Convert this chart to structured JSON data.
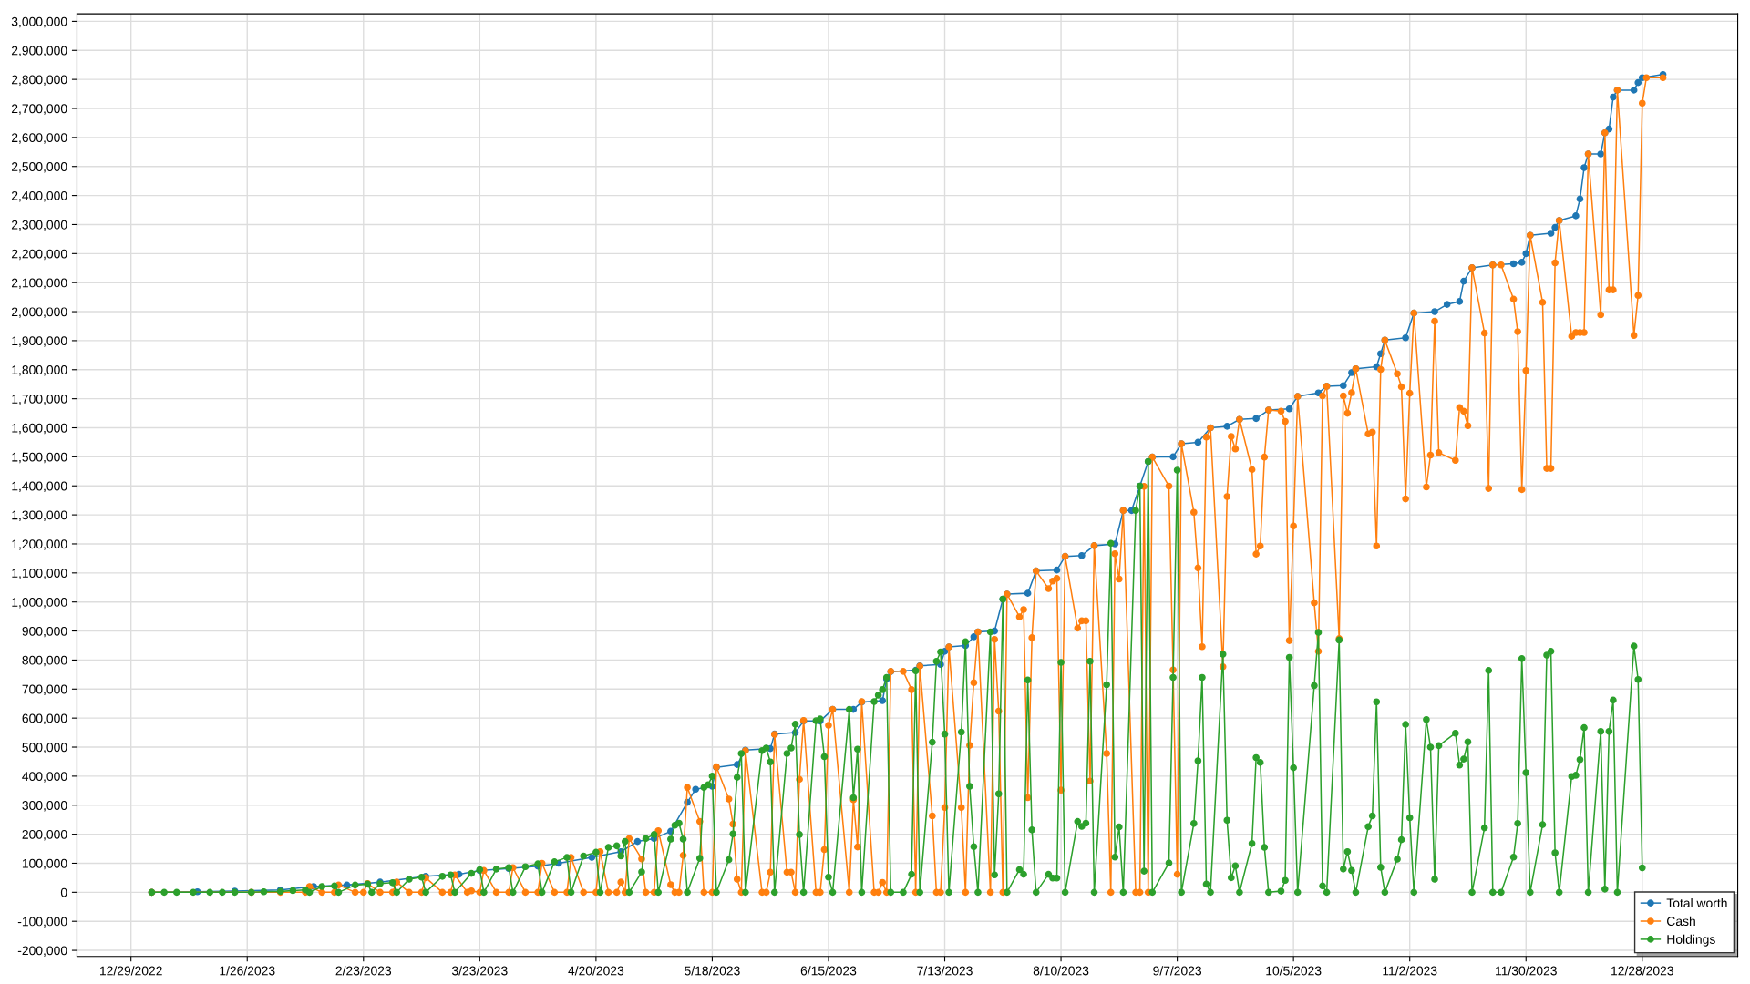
{
  "chart_data": {
    "type": "line",
    "marker": "circle",
    "line_style": "solid",
    "grid": true,
    "legend": "bottom right",
    "xlim": [
      "2022-12-16",
      "2024-01-20"
    ],
    "xticks": [
      {
        "value": "2022-12-29",
        "label": "12/29/2022"
      },
      {
        "value": "2023-01-26",
        "label": "1/26/2023"
      },
      {
        "value": "2023-02-23",
        "label": "2/23/2023"
      },
      {
        "value": "2023-03-23",
        "label": "3/23/2023"
      },
      {
        "value": "2023-04-20",
        "label": "4/20/2023"
      },
      {
        "value": "2023-05-18",
        "label": "5/18/2023"
      },
      {
        "value": "2023-06-15",
        "label": "6/15/2023"
      },
      {
        "value": "2023-07-13",
        "label": "7/13/2023"
      },
      {
        "value": "2023-08-10",
        "label": "8/10/2023"
      },
      {
        "value": "2023-09-07",
        "label": "9/7/2023"
      },
      {
        "value": "2023-10-05",
        "label": "10/5/2023"
      },
      {
        "value": "2023-11-02",
        "label": "11/2/2023"
      },
      {
        "value": "2023-11-30",
        "label": "11/30/2023"
      },
      {
        "value": "2023-12-28",
        "label": "12/28/2023"
      }
    ],
    "ylim": [
      -221000,
      3026000
    ],
    "yticks": [
      {
        "value": -200000,
        "label": "-200,000"
      },
      {
        "value": -100000,
        "label": "-100,000"
      },
      0,
      {
        "value": 100000,
        "label": "100,000"
      },
      {
        "value": 200000,
        "label": "200,000"
      },
      {
        "value": 300000,
        "label": "300,000"
      },
      {
        "value": 400000,
        "label": "400,000"
      },
      {
        "value": 500000,
        "label": "500,000"
      },
      {
        "value": 600000,
        "label": "600,000"
      },
      {
        "value": 700000,
        "label": "700,000"
      },
      {
        "value": 800000,
        "label": "800,000"
      },
      {
        "value": 900000,
        "label": "900,000"
      },
      {
        "value": 1000000,
        "label": "1,000,000"
      },
      {
        "value": 1100000,
        "label": "1,100,000"
      },
      {
        "value": 1200000,
        "label": "1,200,000"
      },
      {
        "value": 1300000,
        "label": "1,300,000"
      },
      {
        "value": 1400000,
        "label": "1,400,000"
      },
      {
        "value": 1500000,
        "label": "1,500,000"
      },
      {
        "value": 1600000,
        "label": "1,600,000"
      },
      {
        "value": 1700000,
        "label": "1,700,000"
      },
      {
        "value": 1800000,
        "label": "1,800,000"
      },
      {
        "value": 1900000,
        "label": "1,900,000"
      },
      {
        "value": 2000000,
        "label": "2,000,000"
      },
      {
        "value": 2100000,
        "label": "2,100,000"
      },
      {
        "value": 2200000,
        "label": "2,200,000"
      },
      {
        "value": 2300000,
        "label": "2,300,000"
      },
      {
        "value": 2400000,
        "label": "2,400,000"
      },
      {
        "value": 2500000,
        "label": "2,500,000"
      },
      {
        "value": 2600000,
        "label": "2,600,000"
      },
      {
        "value": 2700000,
        "label": "2,700,000"
      },
      {
        "value": 2800000,
        "label": "2,800,000"
      },
      {
        "value": 2900000,
        "label": "2,900,000"
      },
      {
        "value": 3000000,
        "label": "3,000,000"
      }
    ],
    "series": [
      {
        "name": "Total worth",
        "color": "#1f77b4",
        "x": [
          "2023-01-03",
          "2023-01-14",
          "2023-01-23",
          "2023-02-03",
          "2023-02-11",
          "2023-02-19",
          "2023-02-27",
          "2023-03-10",
          "2023-03-18",
          "2023-03-23",
          "2023-03-30",
          "2023-04-06",
          "2023-04-11",
          "2023-04-19",
          "2023-04-26",
          "2023-04-30",
          "2023-05-04",
          "2023-05-08",
          "2023-05-12",
          "2023-05-14",
          "2023-05-18",
          "2023-05-19",
          "2023-05-24",
          "2023-05-26",
          "2023-06-01",
          "2023-06-02",
          "2023-06-07",
          "2023-06-09",
          "2023-06-13",
          "2023-06-16",
          "2023-06-21",
          "2023-06-23",
          "2023-06-28",
          "2023-06-29",
          "2023-06-30",
          "2023-07-06",
          "2023-07-07",
          "2023-07-12",
          "2023-07-13",
          "2023-07-14",
          "2023-07-18",
          "2023-07-20",
          "2023-07-21",
          "2023-07-25",
          "2023-07-27",
          "2023-07-28",
          "2023-08-02",
          "2023-08-04",
          "2023-08-09",
          "2023-08-11",
          "2023-08-15",
          "2023-08-18",
          "2023-08-23",
          "2023-08-25",
          "2023-08-27",
          "2023-08-29",
          "2023-08-31",
          "2023-09-01",
          "2023-09-06",
          "2023-09-08",
          "2023-09-12",
          "2023-09-15",
          "2023-09-19",
          "2023-09-22",
          "2023-09-26",
          "2023-09-29",
          "2023-10-04",
          "2023-10-06",
          "2023-10-11",
          "2023-10-13",
          "2023-10-17",
          "2023-10-19",
          "2023-10-20",
          "2023-10-25",
          "2023-10-26",
          "2023-10-27",
          "2023-11-01",
          "2023-11-03",
          "2023-11-08",
          "2023-11-11",
          "2023-11-14",
          "2023-11-15",
          "2023-11-17",
          "2023-11-22",
          "2023-11-27",
          "2023-11-29",
          "2023-11-30",
          "2023-12-01",
          "2023-12-06",
          "2023-12-07",
          "2023-12-08",
          "2023-12-12",
          "2023-12-13",
          "2023-12-14",
          "2023-12-15",
          "2023-12-18",
          "2023-12-19",
          "2023-12-20",
          "2023-12-21",
          "2023-12-22",
          "2023-12-26",
          "2023-12-27",
          "2023-12-28",
          "2024-01-02"
        ],
        "values": [
          0,
          2000,
          4000,
          8000,
          20000,
          25000,
          35000,
          55000,
          62000,
          75000,
          82000,
          90000,
          100000,
          120000,
          140000,
          175000,
          185000,
          210000,
          310000,
          355000,
          365000,
          430000,
          440000,
          490000,
          495000,
          545000,
          550000,
          590000,
          590000,
          630000,
          630000,
          655000,
          660000,
          735000,
          760000,
          765000,
          780000,
          785000,
          830000,
          845000,
          850000,
          880000,
          897000,
          900000,
          1010000,
          1027000,
          1030000,
          1107000,
          1110000,
          1157000,
          1160000,
          1194000,
          1200000,
          1315000,
          1315000,
          1399000,
          1484000,
          1499000,
          1500000,
          1545000,
          1550000,
          1600000,
          1605000,
          1629000,
          1632000,
          1661000,
          1665000,
          1708000,
          1720000,
          1743000,
          1745000,
          1790000,
          1803000,
          1810000,
          1855000,
          1902000,
          1910000,
          1995000,
          2000000,
          2025000,
          2035000,
          2105000,
          2151000,
          2161000,
          2165000,
          2170000,
          2200000,
          2263000,
          2270000,
          2290000,
          2314000,
          2330000,
          2388000,
          2496000,
          2543000,
          2543000,
          2616000,
          2629000,
          2739000,
          2763000,
          2763000,
          2789000,
          2806000,
          2817000
        ]
      },
      {
        "name": "Cash",
        "color": "#ff7f0e",
        "x": [
          "2023-01-03",
          "2023-01-27",
          "2023-02-03",
          "2023-02-09",
          "2023-02-10",
          "2023-02-13",
          "2023-02-16",
          "2023-02-17",
          "2023-02-21",
          "2023-02-23",
          "2023-02-24",
          "2023-02-27",
          "2023-03-02",
          "2023-03-03",
          "2023-03-06",
          "2023-03-09",
          "2023-03-10",
          "2023-03-14",
          "2023-03-16",
          "2023-03-17",
          "2023-03-20",
          "2023-03-21",
          "2023-03-23",
          "2023-03-24",
          "2023-03-27",
          "2023-03-30",
          "2023-03-31",
          "2023-04-03",
          "2023-04-06",
          "2023-04-07",
          "2023-04-10",
          "2023-04-13",
          "2023-04-14",
          "2023-04-17",
          "2023-04-20",
          "2023-04-21",
          "2023-04-23",
          "2023-04-25",
          "2023-04-26",
          "2023-04-27",
          "2023-04-28",
          "2023-05-01",
          "2023-05-02",
          "2023-05-04",
          "2023-05-05",
          "2023-05-08",
          "2023-05-09",
          "2023-05-10",
          "2023-05-11",
          "2023-05-12",
          "2023-05-15",
          "2023-05-16",
          "2023-05-18",
          "2023-05-19",
          "2023-05-22",
          "2023-05-23",
          "2023-05-24",
          "2023-05-25",
          "2023-05-26",
          "2023-05-30",
          "2023-05-31",
          "2023-06-01",
          "2023-06-02",
          "2023-06-05",
          "2023-06-06",
          "2023-06-07",
          "2023-06-08",
          "2023-06-09",
          "2023-06-12",
          "2023-06-13",
          "2023-06-14",
          "2023-06-15",
          "2023-06-16",
          "2023-06-20",
          "2023-06-21",
          "2023-06-22",
          "2023-06-23",
          "2023-06-26",
          "2023-06-27",
          "2023-06-28",
          "2023-06-29",
          "2023-06-30",
          "2023-07-03",
          "2023-07-05",
          "2023-07-06",
          "2023-07-07",
          "2023-07-10",
          "2023-07-11",
          "2023-07-12",
          "2023-07-13",
          "2023-07-14",
          "2023-07-17",
          "2023-07-18",
          "2023-07-19",
          "2023-07-20",
          "2023-07-21",
          "2023-07-24",
          "2023-07-25",
          "2023-07-26",
          "2023-07-27",
          "2023-07-28",
          "2023-07-31",
          "2023-08-01",
          "2023-08-02",
          "2023-08-03",
          "2023-08-04",
          "2023-08-07",
          "2023-08-08",
          "2023-08-09",
          "2023-08-10",
          "2023-08-11",
          "2023-08-14",
          "2023-08-15",
          "2023-08-16",
          "2023-08-17",
          "2023-08-18",
          "2023-08-21",
          "2023-08-22",
          "2023-08-23",
          "2023-08-24",
          "2023-08-25",
          "2023-08-28",
          "2023-08-29",
          "2023-08-30",
          "2023-08-31",
          "2023-09-01",
          "2023-09-05",
          "2023-09-06",
          "2023-09-07",
          "2023-09-08",
          "2023-09-11",
          "2023-09-12",
          "2023-09-13",
          "2023-09-14",
          "2023-09-15",
          "2023-09-18",
          "2023-09-19",
          "2023-09-20",
          "2023-09-21",
          "2023-09-22",
          "2023-09-25",
          "2023-09-26",
          "2023-09-27",
          "2023-09-28",
          "2023-09-29",
          "2023-10-02",
          "2023-10-03",
          "2023-10-04",
          "2023-10-05",
          "2023-10-06",
          "2023-10-10",
          "2023-10-11",
          "2023-10-12",
          "2023-10-13",
          "2023-10-16",
          "2023-10-17",
          "2023-10-18",
          "2023-10-19",
          "2023-10-20",
          "2023-10-23",
          "2023-10-24",
          "2023-10-25",
          "2023-10-26",
          "2023-10-27",
          "2023-10-30",
          "2023-10-31",
          "2023-11-01",
          "2023-11-02",
          "2023-11-03",
          "2023-11-06",
          "2023-11-07",
          "2023-11-08",
          "2023-11-09",
          "2023-11-13",
          "2023-11-14",
          "2023-11-15",
          "2023-11-16",
          "2023-11-17",
          "2023-11-20",
          "2023-11-21",
          "2023-11-22",
          "2023-11-24",
          "2023-11-27",
          "2023-11-28",
          "2023-11-29",
          "2023-11-30",
          "2023-12-01",
          "2023-12-04",
          "2023-12-05",
          "2023-12-06",
          "2023-12-07",
          "2023-12-08",
          "2023-12-11",
          "2023-12-12",
          "2023-12-13",
          "2023-12-14",
          "2023-12-15",
          "2023-12-18",
          "2023-12-19",
          "2023-12-20",
          "2023-12-21",
          "2023-12-22",
          "2023-12-26",
          "2023-12-27",
          "2023-12-28",
          "2023-12-29",
          "2024-01-02"
        ],
        "values": [
          0,
          0,
          0,
          0,
          20000,
          0,
          0,
          25000,
          0,
          0,
          30000,
          0,
          0,
          35000,
          0,
          0,
          50000,
          0,
          0,
          60000,
          0,
          5000,
          0,
          75000,
          0,
          0,
          85000,
          0,
          0,
          100000,
          0,
          0,
          120000,
          0,
          0,
          140000,
          0,
          0,
          35000,
          0,
          185000,
          115000,
          0,
          0,
          212000,
          26000,
          0,
          0,
          127000,
          361000,
          244000,
          0,
          0,
          432000,
          321000,
          235000,
          45000,
          0,
          488000,
          0,
          0,
          69000,
          544000,
          69000,
          69000,
          0,
          389000,
          592000,
          0,
          0,
          147000,
          575000,
          630000,
          0,
          319000,
          156000,
          657000,
          0,
          0,
          34000,
          0,
          761000,
          761000,
          698000,
          0,
          779000,
          263000,
          0,
          0,
          292000,
          845000,
          292000,
          0,
          506000,
          722000,
          897000,
          0,
          871000,
          624000,
          0,
          1027000,
          949000,
          974000,
          326000,
          877000,
          1107000,
          1046000,
          1072000,
          1081000,
          352000,
          1157000,
          910000,
          935000,
          935000,
          383000,
          1194000,
          478000,
          0,
          1166000,
          1079000,
          1315000,
          0,
          0,
          1398000,
          0,
          1499000,
          1399000,
          766000,
          62000,
          1545000,
          1309000,
          1117000,
          846000,
          1568000,
          1600000,
          777000,
          1363000,
          1570000,
          1527000,
          1629000,
          1456000,
          1165000,
          1193000,
          1499000,
          1661000,
          1657000,
          1622000,
          867000,
          1262000,
          1708000,
          997000,
          830000,
          1710000,
          1743000,
          874000,
          1710000,
          1650000,
          1721000,
          1803000,
          1579000,
          1585000,
          1193000,
          1801000,
          1902000,
          1786000,
          1741000,
          1355000,
          1719000,
          1995000,
          1396000,
          1506000,
          1967000,
          1514000,
          1488000,
          1670000,
          1657000,
          1607000,
          2151000,
          1926000,
          1391000,
          2161000,
          2161000,
          2043000,
          1931000,
          1387000,
          1797000,
          2263000,
          2032000,
          1460000,
          1460000,
          2168000,
          2314000,
          1915000,
          1928000,
          1928000,
          1928000,
          2543000,
          1989000,
          2616000,
          2075000,
          2075000,
          2763000,
          1918000,
          2056000,
          2718000,
          2806000,
          2806000
        ]
      },
      {
        "name": "Holdings",
        "color": "#2ca02c",
        "x": [
          "2023-01-03",
          "2023-01-06",
          "2023-01-09",
          "2023-01-13",
          "2023-01-17",
          "2023-01-20",
          "2023-01-23",
          "2023-01-27",
          "2023-01-30",
          "2023-02-03",
          "2023-02-06",
          "2023-02-09",
          "2023-02-10",
          "2023-02-13",
          "2023-02-16",
          "2023-02-17",
          "2023-02-21",
          "2023-02-24",
          "2023-02-25",
          "2023-02-27",
          "2023-03-02",
          "2023-03-03",
          "2023-03-06",
          "2023-03-09",
          "2023-03-10",
          "2023-03-14",
          "2023-03-16",
          "2023-03-17",
          "2023-03-21",
          "2023-03-23",
          "2023-03-24",
          "2023-03-27",
          "2023-03-30",
          "2023-03-31",
          "2023-04-03",
          "2023-04-06",
          "2023-04-07",
          "2023-04-10",
          "2023-04-13",
          "2023-04-14",
          "2023-04-17",
          "2023-04-20",
          "2023-04-21",
          "2023-04-23",
          "2023-04-25",
          "2023-04-26",
          "2023-04-27",
          "2023-04-28",
          "2023-05-01",
          "2023-05-02",
          "2023-05-04",
          "2023-05-05",
          "2023-05-08",
          "2023-05-09",
          "2023-05-10",
          "2023-05-11",
          "2023-05-12",
          "2023-05-15",
          "2023-05-16",
          "2023-05-17",
          "2023-05-18",
          "2023-05-19",
          "2023-05-22",
          "2023-05-23",
          "2023-05-24",
          "2023-05-25",
          "2023-05-26",
          "2023-05-30",
          "2023-05-31",
          "2023-06-01",
          "2023-06-02",
          "2023-06-05",
          "2023-06-06",
          "2023-06-07",
          "2023-06-08",
          "2023-06-09",
          "2023-06-12",
          "2023-06-13",
          "2023-06-14",
          "2023-06-15",
          "2023-06-16",
          "2023-06-20",
          "2023-06-21",
          "2023-06-22",
          "2023-06-23",
          "2023-06-26",
          "2023-06-27",
          "2023-06-28",
          "2023-06-29",
          "2023-06-30",
          "2023-07-03",
          "2023-07-05",
          "2023-07-06",
          "2023-07-07",
          "2023-07-10",
          "2023-07-11",
          "2023-07-12",
          "2023-07-13",
          "2023-07-14",
          "2023-07-17",
          "2023-07-18",
          "2023-07-19",
          "2023-07-20",
          "2023-07-21",
          "2023-07-24",
          "2023-07-25",
          "2023-07-26",
          "2023-07-27",
          "2023-07-28",
          "2023-07-31",
          "2023-08-01",
          "2023-08-02",
          "2023-08-03",
          "2023-08-04",
          "2023-08-07",
          "2023-08-08",
          "2023-08-09",
          "2023-08-10",
          "2023-08-11",
          "2023-08-14",
          "2023-08-15",
          "2023-08-16",
          "2023-08-17",
          "2023-08-18",
          "2023-08-21",
          "2023-08-22",
          "2023-08-23",
          "2023-08-24",
          "2023-08-25",
          "2023-08-28",
          "2023-08-29",
          "2023-08-30",
          "2023-08-31",
          "2023-09-01",
          "2023-09-05",
          "2023-09-06",
          "2023-09-07",
          "2023-09-08",
          "2023-09-11",
          "2023-09-12",
          "2023-09-13",
          "2023-09-14",
          "2023-09-15",
          "2023-09-18",
          "2023-09-19",
          "2023-09-20",
          "2023-09-21",
          "2023-09-22",
          "2023-09-25",
          "2023-09-26",
          "2023-09-27",
          "2023-09-28",
          "2023-09-29",
          "2023-10-02",
          "2023-10-03",
          "2023-10-04",
          "2023-10-05",
          "2023-10-06",
          "2023-10-10",
          "2023-10-11",
          "2023-10-12",
          "2023-10-13",
          "2023-10-16",
          "2023-10-17",
          "2023-10-18",
          "2023-10-19",
          "2023-10-20",
          "2023-10-23",
          "2023-10-24",
          "2023-10-25",
          "2023-10-26",
          "2023-10-27",
          "2023-10-30",
          "2023-10-31",
          "2023-11-01",
          "2023-11-02",
          "2023-11-03",
          "2023-11-06",
          "2023-11-07",
          "2023-11-08",
          "2023-11-09",
          "2023-11-13",
          "2023-11-14",
          "2023-11-15",
          "2023-11-16",
          "2023-11-17",
          "2023-11-20",
          "2023-11-21",
          "2023-11-22",
          "2023-11-24",
          "2023-11-27",
          "2023-11-28",
          "2023-11-29",
          "2023-11-30",
          "2023-12-01",
          "2023-12-04",
          "2023-12-05",
          "2023-12-06",
          "2023-12-07",
          "2023-12-08",
          "2023-12-11",
          "2023-12-12",
          "2023-12-13",
          "2023-12-14",
          "2023-12-15",
          "2023-12-18",
          "2023-12-19",
          "2023-12-20",
          "2023-12-21",
          "2023-12-22",
          "2023-12-26",
          "2023-12-27",
          "2023-12-28"
        ],
        "values": [
          0,
          0,
          0,
          0,
          0,
          0,
          0,
          0,
          2000,
          3000,
          6000,
          8000,
          0,
          20000,
          22000,
          0,
          25000,
          28000,
          0,
          30000,
          33000,
          0,
          45000,
          52000,
          0,
          55000,
          60000,
          0,
          65000,
          78000,
          0,
          80000,
          85000,
          0,
          88000,
          98000,
          0,
          105000,
          120000,
          0,
          125000,
          138000,
          0,
          155000,
          160000,
          125000,
          175000,
          0,
          70000,
          185000,
          199000,
          0,
          183000,
          231000,
          238000,
          183000,
          0,
          117000,
          361000,
          370000,
          400000,
          0,
          112000,
          201000,
          396000,
          478000,
          0,
          488000,
          497000,
          449000,
          0,
          478000,
          497000,
          579000,
          199000,
          0,
          591000,
          597000,
          467000,
          52000,
          0,
          630000,
          326000,
          493000,
          0,
          657000,
          679000,
          698000,
          740000,
          0,
          0,
          62000,
          763000,
          0,
          517000,
          796000,
          828000,
          545000,
          0,
          552000,
          863000,
          365000,
          157000,
          0,
          897000,
          60000,
          339000,
          1010000,
          0,
          78000,
          62000,
          731000,
          215000,
          0,
          62000,
          49000,
          49000,
          792000,
          0,
          244000,
          227000,
          238000,
          796000,
          0,
          715000,
          1202000,
          121000,
          225000,
          0,
          1315000,
          1399000,
          73000,
          1484000,
          0,
          101000,
          740000,
          1454000,
          0,
          237000,
          453000,
          740000,
          28000,
          0,
          820000,
          248000,
          50000,
          91000,
          0,
          168000,
          464000,
          447000,
          155000,
          0,
          4000,
          41000,
          809000,
          429000,
          0,
          712000,
          895000,
          22000,
          0,
          869000,
          80000,
          140000,
          75000,
          0,
          226000,
          263000,
          656000,
          86000,
          0,
          114000,
          181000,
          578000,
          257000,
          0,
          595000,
          500000,
          45000,
          505000,
          548000,
          438000,
          459000,
          518000,
          0,
          222000,
          764000,
          0,
          0,
          121000,
          237000,
          805000,
          412000,
          0,
          233000,
          817000,
          830000,
          136000,
          0,
          399000,
          403000,
          457000,
          567000,
          0,
          554000,
          11000,
          554000,
          662000,
          0,
          848000,
          733000,
          84000
        ]
      }
    ]
  }
}
